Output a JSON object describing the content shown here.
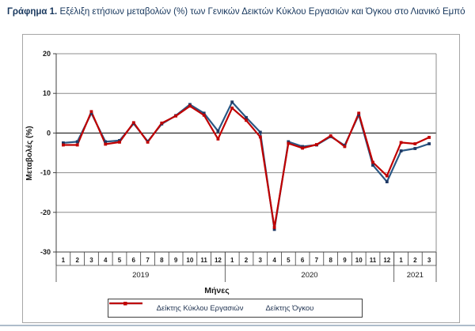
{
  "title": {
    "prefix": "Γράφημα 1.",
    "text": " Εξέλιξη ετήσιων μεταβολών (%) των Γενικών Δεικτών Κύκλου Εργασιών και Όγκου στο Λιανικό Εμπό"
  },
  "chart_data": {
    "type": "line",
    "xlabel": "Μήνες",
    "ylabel": "Μεταβολές (%)",
    "ylim": [
      -30,
      20
    ],
    "y_ticks": [
      20,
      10,
      0,
      -10,
      -20,
      -30
    ],
    "grid": true,
    "legend_position": "bottom",
    "categories": [
      "1",
      "2",
      "3",
      "4",
      "5",
      "6",
      "7",
      "8",
      "9",
      "10",
      "11",
      "12",
      "1",
      "2",
      "3",
      "4",
      "5",
      "6",
      "7",
      "8",
      "9",
      "10",
      "11",
      "12",
      "1",
      "2",
      "3"
    ],
    "year_groups": [
      {
        "label": "2019",
        "months": 12
      },
      {
        "label": "2020",
        "months": 12
      },
      {
        "label": "2021",
        "months": 3
      }
    ],
    "series": [
      {
        "name": "Δείκτης Κύκλου Εργασιών",
        "color": "#2a5783",
        "marker_color": "#1f3864",
        "values": [
          -2.5,
          -2.2,
          5.0,
          -2.2,
          -1.9,
          2.4,
          -2.1,
          2.3,
          4.4,
          7.2,
          5.0,
          0.5,
          7.8,
          3.9,
          0.2,
          -24.3,
          -2.2,
          -3.4,
          -3.0,
          -0.9,
          -3.1,
          4.6,
          -8.1,
          -12.3,
          -4.5,
          -3.9,
          -2.7
        ]
      },
      {
        "name": "Δείκτης Όγκου",
        "color": "#c00000",
        "marker_color": "#c00000",
        "values": [
          -3.0,
          -3.0,
          5.4,
          -2.8,
          -2.3,
          2.6,
          -2.3,
          2.5,
          4.3,
          6.8,
          4.5,
          -1.5,
          6.3,
          3.2,
          -1.0,
          -23.8,
          -2.6,
          -3.8,
          -2.9,
          -0.7,
          -3.4,
          5.0,
          -7.4,
          -10.8,
          -2.4,
          -2.7,
          -1.1
        ]
      }
    ],
    "colors": {
      "gridline": "#8c8c8c",
      "axis": "#404040",
      "zero_line": "#000000",
      "text": "#1a1a1a"
    }
  }
}
